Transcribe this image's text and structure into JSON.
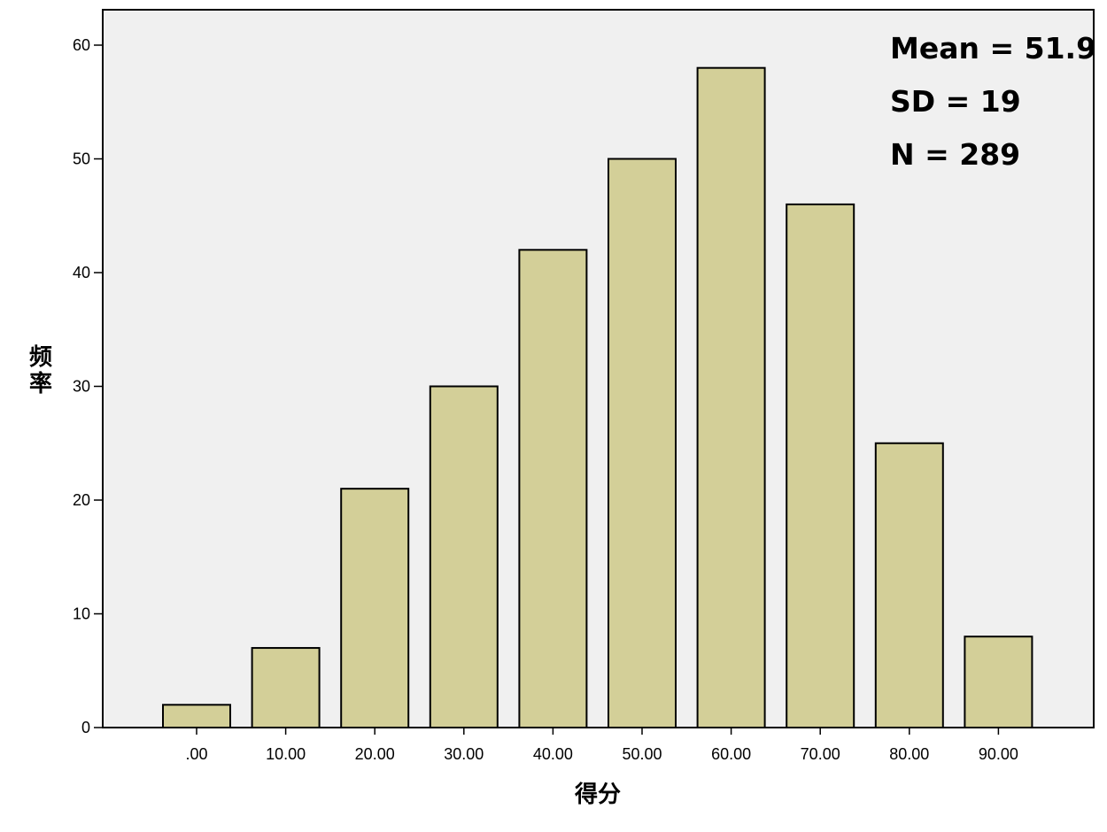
{
  "chart_data": {
    "type": "bar",
    "categories": [
      ".00",
      "10.00",
      "20.00",
      "30.00",
      "40.00",
      "50.00",
      "60.00",
      "70.00",
      "80.00",
      "90.00"
    ],
    "values": [
      2,
      7,
      21,
      30,
      42,
      50,
      58,
      46,
      25,
      8
    ],
    "xlabel": "得分",
    "ylabel": "频率",
    "ylim": [
      0,
      60
    ],
    "yticks": [
      0,
      10,
      20,
      30,
      40,
      50,
      60
    ],
    "grid": false,
    "stats": {
      "mean": "Mean = 51.9",
      "sd": "SD = 19",
      "n": "N =  289"
    },
    "colors": {
      "bar_fill": "#d3cf98",
      "bar_stroke": "#000000",
      "plot_background": "#f0f0f0"
    }
  }
}
